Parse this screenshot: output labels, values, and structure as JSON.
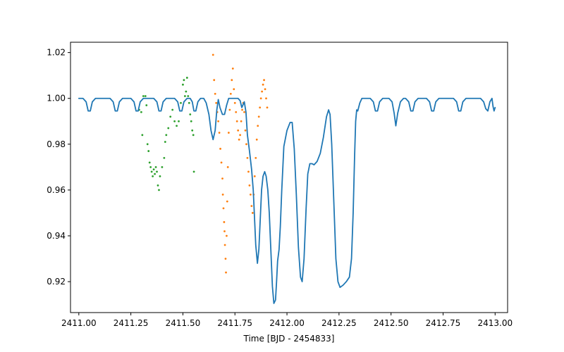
{
  "chart_data": {
    "type": "line",
    "title": "",
    "xlabel": "Time [BJD - 2454833]",
    "ylabel": "",
    "xlim": [
      2410.96,
      2413.06
    ],
    "ylim": [
      0.9065,
      1.0245
    ],
    "grid": false,
    "x_ticks": [
      2411.0,
      2411.25,
      2411.5,
      2411.75,
      2412.0,
      2412.25,
      2412.5,
      2412.75,
      2413.0
    ],
    "x_tick_labels": [
      "2411.00",
      "2411.25",
      "2411.50",
      "2411.75",
      "2412.00",
      "2412.25",
      "2412.50",
      "2412.75",
      "2413.00"
    ],
    "y_ticks": [
      0.92,
      0.94,
      0.96,
      0.98,
      1.0,
      1.02
    ],
    "y_tick_labels": [
      "0.92",
      "0.94",
      "0.96",
      "0.98",
      "1.00",
      "1.02"
    ],
    "series": [
      {
        "kind": "line",
        "color": "#1f77b4",
        "points": [
          [
            2411.0,
            1.0
          ],
          [
            2411.02,
            1.0
          ],
          [
            2411.035,
            0.9985
          ],
          [
            2411.045,
            0.9945
          ],
          [
            2411.055,
            0.9945
          ],
          [
            2411.065,
            0.9985
          ],
          [
            2411.08,
            1.0
          ],
          [
            2411.15,
            1.0
          ],
          [
            2411.165,
            0.9985
          ],
          [
            2411.175,
            0.9945
          ],
          [
            2411.185,
            0.9945
          ],
          [
            2411.195,
            0.9985
          ],
          [
            2411.21,
            1.0
          ],
          [
            2411.25,
            1.0
          ],
          [
            2411.265,
            0.9985
          ],
          [
            2411.275,
            0.9945
          ],
          [
            2411.285,
            0.9945
          ],
          [
            2411.295,
            0.9985
          ],
          [
            2411.31,
            1.0
          ],
          [
            2411.36,
            1.0
          ],
          [
            2411.375,
            0.9985
          ],
          [
            2411.385,
            0.9945
          ],
          [
            2411.395,
            0.9945
          ],
          [
            2411.405,
            0.9985
          ],
          [
            2411.42,
            1.0
          ],
          [
            2411.46,
            1.0
          ],
          [
            2411.475,
            0.9985
          ],
          [
            2411.485,
            0.9945
          ],
          [
            2411.495,
            0.9945
          ],
          [
            2411.505,
            0.9985
          ],
          [
            2411.52,
            1.0
          ],
          [
            2411.535,
            1.0
          ],
          [
            2411.545,
            0.9985
          ],
          [
            2411.553,
            0.9945
          ],
          [
            2411.562,
            0.9945
          ],
          [
            2411.572,
            0.9985
          ],
          [
            2411.585,
            1.0
          ],
          [
            2411.6,
            1.0
          ],
          [
            2411.612,
            0.998
          ],
          [
            2411.625,
            0.993
          ],
          [
            2411.635,
            0.986
          ],
          [
            2411.645,
            0.982
          ],
          [
            2411.655,
            0.986
          ],
          [
            2411.663,
            0.995
          ],
          [
            2411.67,
            0.9995
          ],
          [
            2411.678,
            0.996
          ],
          [
            2411.69,
            0.993
          ],
          [
            2411.7,
            0.993
          ],
          [
            2411.71,
            0.997
          ],
          [
            2411.72,
            1.0
          ],
          [
            2411.765,
            1.0
          ],
          [
            2411.775,
            0.999
          ],
          [
            2411.783,
            0.996
          ],
          [
            2411.795,
            0.9985
          ],
          [
            2411.803,
            0.994
          ],
          [
            2411.81,
            0.984
          ],
          [
            2411.82,
            0.977
          ],
          [
            2411.83,
            0.969
          ],
          [
            2411.838,
            0.96
          ],
          [
            2411.843,
            0.95
          ],
          [
            2411.85,
            0.936
          ],
          [
            2411.858,
            0.928
          ],
          [
            2411.865,
            0.934
          ],
          [
            2411.872,
            0.948
          ],
          [
            2411.878,
            0.96
          ],
          [
            2411.885,
            0.966
          ],
          [
            2411.893,
            0.968
          ],
          [
            2411.9,
            0.966
          ],
          [
            2411.908,
            0.96
          ],
          [
            2411.915,
            0.95
          ],
          [
            2411.922,
            0.935
          ],
          [
            2411.93,
            0.918
          ],
          [
            2411.937,
            0.9105
          ],
          [
            2411.945,
            0.912
          ],
          [
            2411.95,
            0.92
          ],
          [
            2411.955,
            0.929
          ],
          [
            2411.962,
            0.934
          ],
          [
            2411.968,
            0.944
          ],
          [
            2411.975,
            0.96
          ],
          [
            2411.985,
            0.979
          ],
          [
            2412.0,
            0.986
          ],
          [
            2412.015,
            0.9895
          ],
          [
            2412.025,
            0.9895
          ],
          [
            2412.035,
            0.978
          ],
          [
            2412.045,
            0.958
          ],
          [
            2412.055,
            0.935
          ],
          [
            2412.065,
            0.922
          ],
          [
            2412.073,
            0.92
          ],
          [
            2412.082,
            0.93
          ],
          [
            2412.092,
            0.952
          ],
          [
            2412.1,
            0.967
          ],
          [
            2412.11,
            0.9715
          ],
          [
            2412.12,
            0.9715
          ],
          [
            2412.13,
            0.971
          ],
          [
            2412.145,
            0.9725
          ],
          [
            2412.16,
            0.976
          ],
          [
            2412.175,
            0.983
          ],
          [
            2412.19,
            0.992
          ],
          [
            2412.2,
            0.995
          ],
          [
            2412.207,
            0.993
          ],
          [
            2412.215,
            0.98
          ],
          [
            2412.225,
            0.955
          ],
          [
            2412.235,
            0.93
          ],
          [
            2412.245,
            0.92
          ],
          [
            2412.255,
            0.9175
          ],
          [
            2412.27,
            0.9185
          ],
          [
            2412.285,
            0.92
          ],
          [
            2412.3,
            0.922
          ],
          [
            2412.31,
            0.93
          ],
          [
            2412.318,
            0.95
          ],
          [
            2412.325,
            0.975
          ],
          [
            2412.33,
            0.99
          ],
          [
            2412.335,
            0.995
          ],
          [
            2412.34,
            0.9945
          ],
          [
            2412.35,
            0.998
          ],
          [
            2412.36,
            1.0
          ],
          [
            2412.4,
            1.0
          ],
          [
            2412.415,
            0.9985
          ],
          [
            2412.425,
            0.9945
          ],
          [
            2412.435,
            0.9945
          ],
          [
            2412.445,
            0.9985
          ],
          [
            2412.46,
            1.0
          ],
          [
            2412.49,
            1.0
          ],
          [
            2412.505,
            0.9985
          ],
          [
            2412.515,
            0.9935
          ],
          [
            2412.523,
            0.988
          ],
          [
            2412.532,
            0.9935
          ],
          [
            2412.545,
            0.9985
          ],
          [
            2412.56,
            1.0
          ],
          [
            2412.57,
            1.0
          ],
          [
            2412.585,
            0.9985
          ],
          [
            2412.595,
            0.9945
          ],
          [
            2412.605,
            0.9945
          ],
          [
            2412.615,
            0.9985
          ],
          [
            2412.63,
            1.0
          ],
          [
            2412.67,
            1.0
          ],
          [
            2412.685,
            0.9985
          ],
          [
            2412.695,
            0.9945
          ],
          [
            2412.705,
            0.9945
          ],
          [
            2412.715,
            0.9985
          ],
          [
            2412.73,
            1.0
          ],
          [
            2412.8,
            1.0
          ],
          [
            2412.815,
            0.9985
          ],
          [
            2412.825,
            0.9945
          ],
          [
            2412.835,
            0.9945
          ],
          [
            2412.845,
            0.9985
          ],
          [
            2412.86,
            1.0
          ],
          [
            2412.93,
            1.0
          ],
          [
            2412.945,
            0.9985
          ],
          [
            2412.955,
            0.9955
          ],
          [
            2412.965,
            0.9945
          ],
          [
            2412.975,
            0.9985
          ],
          [
            2412.985,
            1.0
          ],
          [
            2412.99,
            0.9965
          ],
          [
            2412.995,
            0.9945
          ],
          [
            2413.0,
            0.996
          ]
        ]
      },
      {
        "kind": "scatter",
        "color": "#ff7f0e",
        "x_range": [
          2411.63,
          2411.91
        ],
        "points": [
          [
            2411.645,
            1.019
          ],
          [
            2411.65,
            1.008
          ],
          [
            2411.655,
            1.002
          ],
          [
            2411.66,
            0.998
          ],
          [
            2411.665,
            0.994
          ],
          [
            2411.67,
            0.99
          ],
          [
            2411.675,
            0.985
          ],
          [
            2411.68,
            0.978
          ],
          [
            2411.685,
            0.972
          ],
          [
            2411.69,
            0.965
          ],
          [
            2411.692,
            0.958
          ],
          [
            2411.695,
            0.952
          ],
          [
            2411.698,
            0.946
          ],
          [
            2411.7,
            0.942
          ],
          [
            2411.702,
            0.936
          ],
          [
            2411.705,
            0.93
          ],
          [
            2411.707,
            0.924
          ],
          [
            2411.71,
            0.94
          ],
          [
            2411.713,
            0.955
          ],
          [
            2411.716,
            0.97
          ],
          [
            2411.72,
            0.985
          ],
          [
            2411.725,
            0.995
          ],
          [
            2411.73,
            1.002
          ],
          [
            2411.735,
            1.008
          ],
          [
            2411.74,
            1.013
          ],
          [
            2411.745,
            1.004
          ],
          [
            2411.75,
            0.998
          ],
          [
            2411.755,
            0.994
          ],
          [
            2411.76,
            0.99
          ],
          [
            2411.765,
            0.986
          ],
          [
            2411.77,
            0.982
          ],
          [
            2411.775,
            0.984
          ],
          [
            2411.78,
            0.99
          ],
          [
            2411.785,
            0.995
          ],
          [
            2411.79,
            0.998
          ],
          [
            2411.795,
            0.994
          ],
          [
            2411.8,
            0.986
          ],
          [
            2411.805,
            0.98
          ],
          [
            2411.81,
            0.974
          ],
          [
            2411.815,
            0.968
          ],
          [
            2411.82,
            0.962
          ],
          [
            2411.825,
            0.958
          ],
          [
            2411.83,
            0.953
          ],
          [
            2411.835,
            0.95
          ],
          [
            2411.84,
            0.958
          ],
          [
            2411.845,
            0.966
          ],
          [
            2411.85,
            0.974
          ],
          [
            2411.855,
            0.982
          ],
          [
            2411.86,
            0.988
          ],
          [
            2411.865,
            0.992
          ],
          [
            2411.87,
            0.996
          ],
          [
            2411.875,
            1.0
          ],
          [
            2411.88,
            1.003
          ],
          [
            2411.885,
            1.006
          ],
          [
            2411.89,
            1.008
          ],
          [
            2411.895,
            1.004
          ],
          [
            2411.9,
            1.0
          ],
          [
            2411.905,
            0.996
          ]
        ]
      },
      {
        "kind": "scatter",
        "color": "#2ca02c",
        "x_range": [
          2411.28,
          2411.56
        ],
        "points": [
          [
            2411.29,
            0.995
          ],
          [
            2411.3,
            0.994
          ],
          [
            2411.305,
            0.984
          ],
          [
            2411.31,
            1.001
          ],
          [
            2411.32,
            1.001
          ],
          [
            2411.325,
            0.997
          ],
          [
            2411.33,
            0.98
          ],
          [
            2411.335,
            0.977
          ],
          [
            2411.34,
            0.972
          ],
          [
            2411.345,
            0.97
          ],
          [
            2411.35,
            0.968
          ],
          [
            2411.355,
            0.966
          ],
          [
            2411.36,
            0.969
          ],
          [
            2411.365,
            0.967
          ],
          [
            2411.37,
            0.97
          ],
          [
            2411.375,
            0.968
          ],
          [
            2411.38,
            0.962
          ],
          [
            2411.385,
            0.96
          ],
          [
            2411.39,
            0.966
          ],
          [
            2411.4,
            0.97
          ],
          [
            2411.41,
            0.974
          ],
          [
            2411.415,
            0.981
          ],
          [
            2411.42,
            0.984
          ],
          [
            2411.43,
            0.987
          ],
          [
            2411.44,
            0.992
          ],
          [
            2411.45,
            0.995
          ],
          [
            2411.46,
            0.99
          ],
          [
            2411.47,
            0.988
          ],
          [
            2411.48,
            0.99
          ],
          [
            2411.49,
            0.998
          ],
          [
            2411.5,
            1.006
          ],
          [
            2411.505,
            1.008
          ],
          [
            2411.51,
            1.001
          ],
          [
            2411.515,
            1.003
          ],
          [
            2411.52,
            1.009
          ],
          [
            2411.525,
            1.001
          ],
          [
            2411.53,
            0.998
          ],
          [
            2411.535,
            0.993
          ],
          [
            2411.54,
            0.99
          ],
          [
            2411.545,
            0.986
          ],
          [
            2411.55,
            0.984
          ],
          [
            2411.553,
            0.968
          ]
        ]
      }
    ]
  }
}
